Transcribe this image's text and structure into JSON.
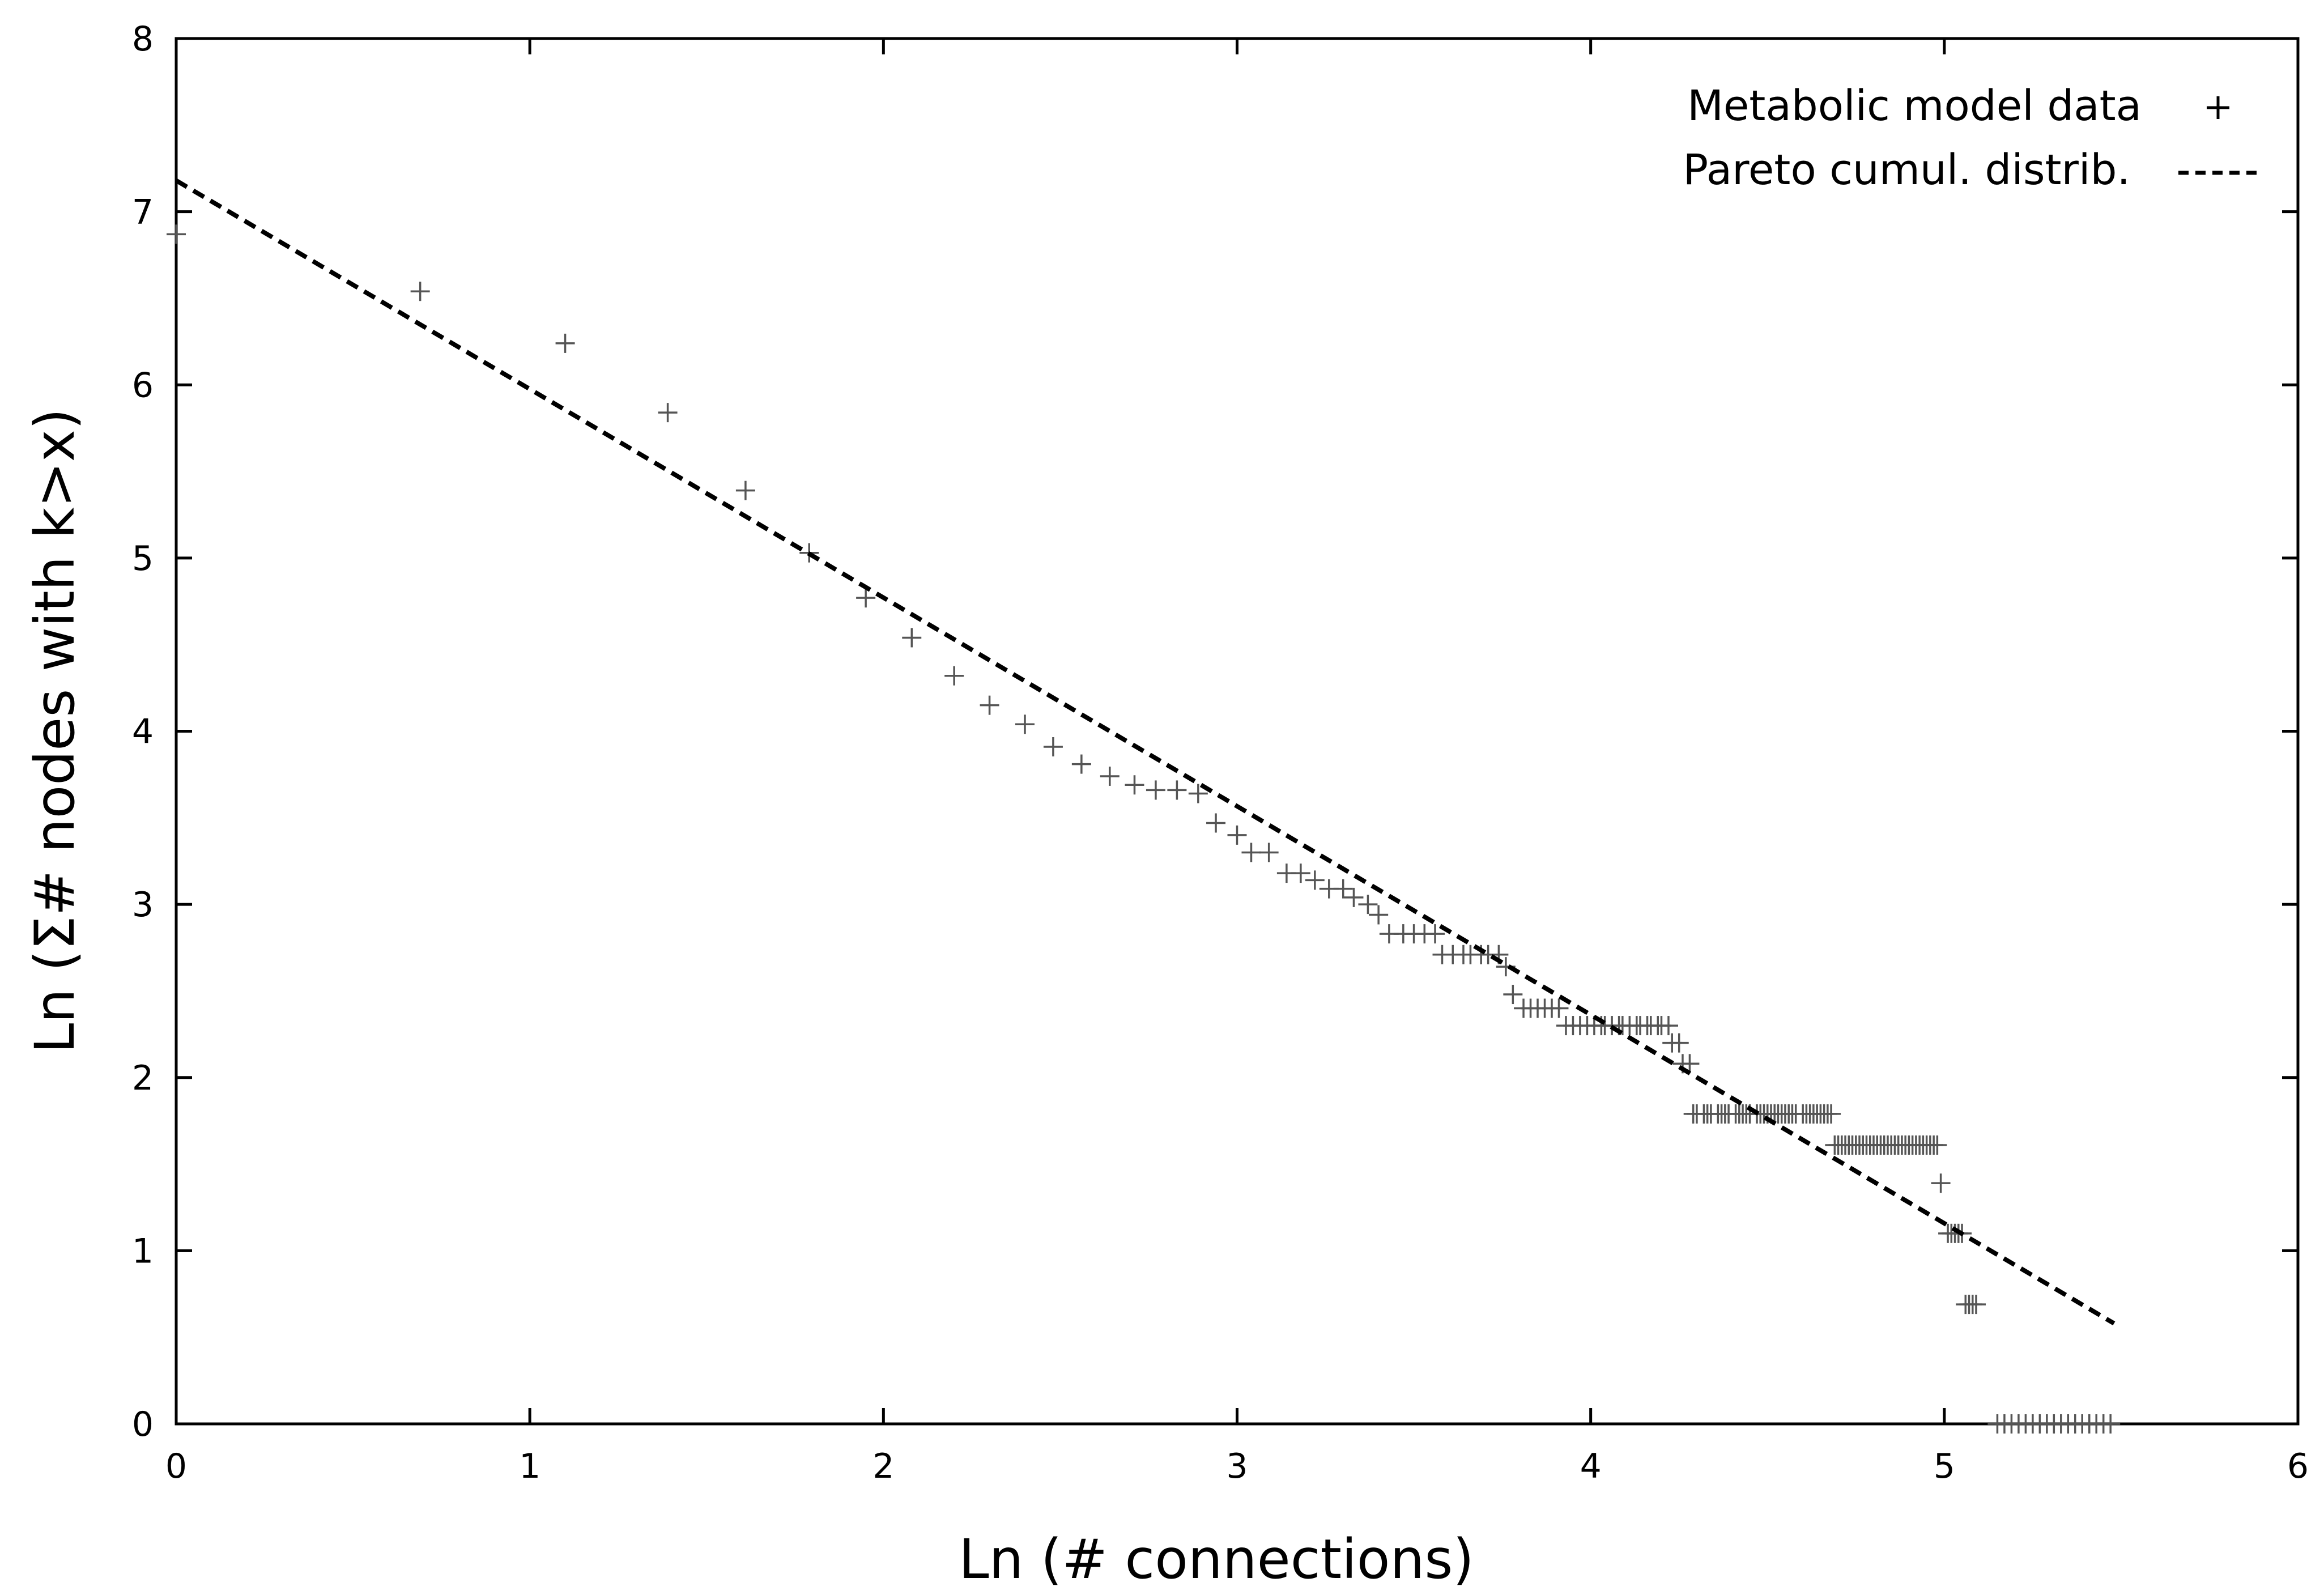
{
  "chart_data": {
    "type": "scatter",
    "xlabel": "Ln (# connections)",
    "ylabel": "Ln (Σ# nodes with k>x)",
    "xlim": [
      0,
      6
    ],
    "ylim": [
      0,
      8
    ],
    "xticks": [
      "0",
      "1",
      "2",
      "3",
      "4",
      "5",
      "6"
    ],
    "yticks": [
      "0",
      "1",
      "2",
      "3",
      "4",
      "5",
      "6",
      "7",
      "8"
    ],
    "grid": false,
    "legend_position": "top-right",
    "series": [
      {
        "name": "Metabolic model data",
        "marker": "+",
        "color": "#555555",
        "points": [
          [
            0.0,
            6.87
          ],
          [
            0.69,
            6.54
          ],
          [
            1.1,
            6.24
          ],
          [
            1.39,
            5.84
          ],
          [
            1.61,
            5.39
          ],
          [
            1.79,
            5.03
          ],
          [
            1.95,
            4.77
          ],
          [
            2.08,
            4.54
          ],
          [
            2.2,
            4.32
          ],
          [
            2.3,
            4.15
          ],
          [
            2.4,
            4.04
          ],
          [
            2.48,
            3.91
          ],
          [
            2.56,
            3.81
          ],
          [
            2.64,
            3.74
          ],
          [
            2.71,
            3.69
          ],
          [
            2.77,
            3.66
          ],
          [
            2.83,
            3.66
          ],
          [
            2.89,
            3.64
          ],
          [
            2.94,
            3.47
          ],
          [
            3.0,
            3.4
          ],
          [
            3.04,
            3.3
          ],
          [
            3.09,
            3.3
          ],
          [
            3.14,
            3.18
          ],
          [
            3.18,
            3.18
          ],
          [
            3.22,
            3.14
          ],
          [
            3.26,
            3.09
          ],
          [
            3.3,
            3.09
          ],
          [
            3.33,
            3.04
          ],
          [
            3.37,
            3.0
          ],
          [
            3.4,
            2.94
          ],
          [
            3.43,
            2.83
          ],
          [
            3.47,
            2.83
          ],
          [
            3.5,
            2.83
          ],
          [
            3.53,
            2.83
          ],
          [
            3.56,
            2.83
          ],
          [
            3.58,
            2.71
          ],
          [
            3.61,
            2.71
          ],
          [
            3.64,
            2.71
          ],
          [
            3.66,
            2.71
          ],
          [
            3.69,
            2.71
          ],
          [
            3.71,
            2.71
          ],
          [
            3.74,
            2.71
          ],
          [
            3.76,
            2.64
          ],
          [
            3.78,
            2.48
          ],
          [
            3.81,
            2.4
          ],
          [
            3.83,
            2.4
          ],
          [
            3.85,
            2.4
          ],
          [
            3.87,
            2.4
          ],
          [
            3.89,
            2.4
          ],
          [
            3.91,
            2.4
          ],
          [
            3.93,
            2.3
          ],
          [
            3.95,
            2.3
          ],
          [
            3.97,
            2.3
          ],
          [
            3.99,
            2.3
          ],
          [
            4.01,
            2.3
          ],
          [
            4.03,
            2.3
          ],
          [
            4.04,
            2.3
          ],
          [
            4.06,
            2.3
          ],
          [
            4.08,
            2.3
          ],
          [
            4.09,
            2.3
          ],
          [
            4.11,
            2.3
          ],
          [
            4.13,
            2.3
          ],
          [
            4.14,
            2.3
          ],
          [
            4.16,
            2.3
          ],
          [
            4.17,
            2.3
          ],
          [
            4.19,
            2.3
          ],
          [
            4.2,
            2.3
          ],
          [
            4.22,
            2.3
          ],
          [
            4.23,
            2.2
          ],
          [
            4.25,
            2.2
          ],
          [
            4.26,
            2.08
          ],
          [
            4.28,
            2.08
          ],
          [
            4.29,
            1.79
          ],
          [
            4.3,
            1.79
          ],
          [
            4.32,
            1.79
          ],
          [
            4.33,
            1.79
          ],
          [
            4.34,
            1.79
          ],
          [
            4.36,
            1.79
          ],
          [
            4.37,
            1.79
          ],
          [
            4.38,
            1.79
          ],
          [
            4.39,
            1.79
          ],
          [
            4.41,
            1.79
          ],
          [
            4.42,
            1.79
          ],
          [
            4.43,
            1.79
          ],
          [
            4.44,
            1.79
          ],
          [
            4.45,
            1.79
          ],
          [
            4.47,
            1.79
          ],
          [
            4.48,
            1.79
          ],
          [
            4.49,
            1.79
          ],
          [
            4.5,
            1.79
          ],
          [
            4.51,
            1.79
          ],
          [
            4.52,
            1.79
          ],
          [
            4.53,
            1.79
          ],
          [
            4.54,
            1.79
          ],
          [
            4.55,
            1.79
          ],
          [
            4.56,
            1.79
          ],
          [
            4.57,
            1.79
          ],
          [
            4.58,
            1.79
          ],
          [
            4.6,
            1.79
          ],
          [
            4.61,
            1.79
          ],
          [
            4.62,
            1.79
          ],
          [
            4.63,
            1.79
          ],
          [
            4.64,
            1.79
          ],
          [
            4.65,
            1.79
          ],
          [
            4.66,
            1.79
          ],
          [
            4.67,
            1.79
          ],
          [
            4.68,
            1.79
          ],
          [
            4.69,
            1.61
          ],
          [
            4.7,
            1.61
          ],
          [
            4.71,
            1.61
          ],
          [
            4.72,
            1.61
          ],
          [
            4.73,
            1.61
          ],
          [
            4.74,
            1.61
          ],
          [
            4.75,
            1.61
          ],
          [
            4.76,
            1.61
          ],
          [
            4.77,
            1.61
          ],
          [
            4.78,
            1.61
          ],
          [
            4.79,
            1.61
          ],
          [
            4.8,
            1.61
          ],
          [
            4.81,
            1.61
          ],
          [
            4.82,
            1.61
          ],
          [
            4.83,
            1.61
          ],
          [
            4.84,
            1.61
          ],
          [
            4.85,
            1.61
          ],
          [
            4.86,
            1.61
          ],
          [
            4.87,
            1.61
          ],
          [
            4.88,
            1.61
          ],
          [
            4.89,
            1.61
          ],
          [
            4.9,
            1.61
          ],
          [
            4.91,
            1.61
          ],
          [
            4.92,
            1.61
          ],
          [
            4.93,
            1.61
          ],
          [
            4.94,
            1.61
          ],
          [
            4.95,
            1.61
          ],
          [
            4.96,
            1.61
          ],
          [
            4.97,
            1.61
          ],
          [
            4.98,
            1.61
          ],
          [
            4.99,
            1.39
          ],
          [
            5.01,
            1.1
          ],
          [
            5.02,
            1.1
          ],
          [
            5.03,
            1.1
          ],
          [
            5.04,
            1.1
          ],
          [
            5.05,
            1.1
          ],
          [
            5.06,
            0.69
          ],
          [
            5.07,
            0.69
          ],
          [
            5.08,
            0.69
          ],
          [
            5.09,
            0.69
          ],
          [
            5.15,
            0
          ],
          [
            5.17,
            0
          ],
          [
            5.19,
            0
          ],
          [
            5.21,
            0
          ],
          [
            5.23,
            0
          ],
          [
            5.25,
            0
          ],
          [
            5.27,
            0
          ],
          [
            5.29,
            0
          ],
          [
            5.31,
            0
          ],
          [
            5.33,
            0
          ],
          [
            5.35,
            0
          ],
          [
            5.37,
            0
          ],
          [
            5.39,
            0
          ],
          [
            5.41,
            0
          ],
          [
            5.43,
            0
          ],
          [
            5.45,
            0
          ],
          [
            5.47,
            0
          ]
        ]
      },
      {
        "name": "Pareto cumul. distrib.",
        "type": "line",
        "style": "dashed",
        "color": "#000000",
        "points": [
          [
            0,
            7.18
          ],
          [
            5.48,
            0.58
          ]
        ]
      }
    ]
  }
}
